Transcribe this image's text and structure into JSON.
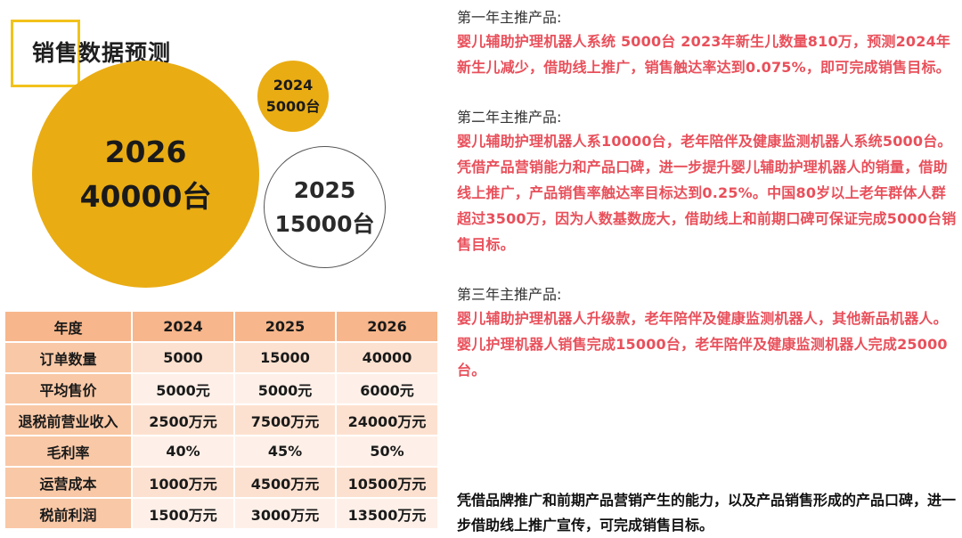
{
  "title": "销售数据预测",
  "bubbles": {
    "y2026": {
      "year": "2026",
      "qty": "40000台"
    },
    "y2024": {
      "year": "2024",
      "qty": "5000台"
    },
    "y2025": {
      "year": "2025",
      "qty": "15000台"
    }
  },
  "colors": {
    "bubble_fill": "#e9ac13",
    "title_box": "#f2c21b",
    "header_fill": "#f7b68b",
    "accent_red": "#e8505b"
  },
  "table": {
    "headers": [
      "年度",
      "2024",
      "2025",
      "2026"
    ],
    "rows": [
      [
        "订单数量",
        "5000",
        "15000",
        "40000"
      ],
      [
        "平均售价",
        "5000元",
        "5000元",
        "6000元"
      ],
      [
        "退税前营业收入",
        "2500万元",
        "7500万元",
        "24000万元"
      ],
      [
        "毛利率",
        "40%",
        "45%",
        "50%"
      ],
      [
        "运营成本",
        "1000万元",
        "4500万元",
        "10500万元"
      ],
      [
        "税前利润",
        "1500万元",
        "3000万元",
        "13500万元"
      ]
    ]
  },
  "sections": [
    {
      "heading": "第一年主推产品:",
      "body": [
        "婴儿辅助护理机器人系统 5000台 2023年新生儿数量810万，预测2024年新生儿减少，借助线上推广，销售触达率达到0.075%，即可完成销售目标。"
      ]
    },
    {
      "heading": "第二年主推产品:",
      "body": [
        "婴儿辅助护理机器人系10000台，老年陪伴及健康监测机器人系统5000台。",
        "凭借产品营销能力和产品口碑，进一步提升婴儿辅助护理机器人的销量，借助线上推广，产品销售率触达率目标达到0.25%。中国80岁以上老年群体人群超过3500万，因为人数基数庞大，借助线上和前期口碑可保证完成5000台销售目标。"
      ]
    },
    {
      "heading": "第三年主推产品:",
      "body": [
        "婴儿辅助护理机器人升级款，老年陪伴及健康监测机器人，其他新品机器人。",
        "婴儿护理机器人销售完成15000台，老年陪伴及健康监测机器人完成25000台。"
      ]
    }
  ],
  "final": "凭借品牌推广和前期产品营销产生的能力，以及产品销售形成的产品口碑，进一步借助线上推广宣传，可完成销售目标。"
}
